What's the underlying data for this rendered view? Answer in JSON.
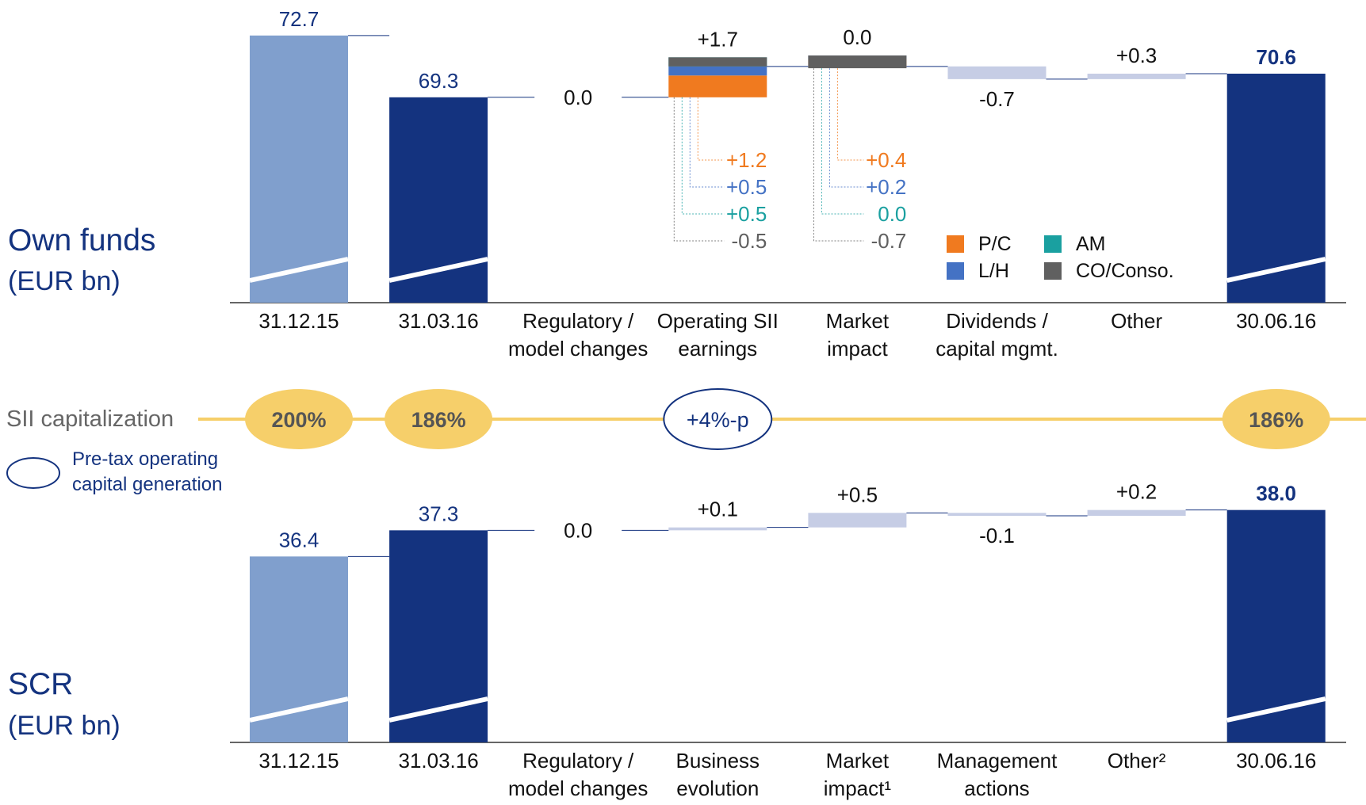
{
  "chart_data": [
    {
      "type": "waterfall",
      "title": "Own funds",
      "subtitle": "(EUR bn)",
      "categories": [
        "31.12.15",
        "31.03.16",
        "Regulatory /\nmodel changes",
        "Operating SII\nearnings",
        "Market\nimpact",
        "Dividends /\ncapital mgmt.",
        "Other",
        "30.06.16"
      ],
      "measure": [
        "total",
        "total",
        "relative",
        "relative",
        "relative",
        "relative",
        "relative",
        "total"
      ],
      "values": [
        72.7,
        69.3,
        0.0,
        1.7,
        0.0,
        -0.7,
        0.3,
        70.6
      ],
      "value_labels": [
        "72.7",
        "69.3",
        "0.0",
        "+1.7",
        "0.0",
        "-0.7",
        "+0.3",
        "70.6"
      ],
      "colors": [
        "#809fcd",
        "#14337f",
        "#c6cde5",
        "#c6cde5",
        "#c6cde5",
        "#c6cde5",
        "#c6cde5",
        "#14337f"
      ],
      "ylim": [
        58,
        74
      ],
      "breakdown": [
        {
          "name": "P/C",
          "color": "#f07a1f",
          "values": [
            null,
            null,
            null,
            1.2,
            0.4,
            null,
            null,
            null
          ],
          "value_labels": [
            null,
            null,
            null,
            "+1.2",
            "+0.4",
            null,
            null,
            null
          ]
        },
        {
          "name": "L/H",
          "color": "#4472c4",
          "values": [
            null,
            null,
            null,
            0.5,
            0.2,
            null,
            null,
            null
          ],
          "value_labels": [
            null,
            null,
            null,
            "+0.5",
            "+0.2",
            null,
            null,
            null
          ]
        },
        {
          "name": "AM",
          "color": "#1aa0a0",
          "values": [
            null,
            null,
            null,
            0.5,
            0.0,
            null,
            null,
            null
          ],
          "value_labels": [
            null,
            null,
            null,
            "+0.5",
            "0.0",
            null,
            null,
            null
          ]
        },
        {
          "name": "CO/Conso.",
          "color": "#606060",
          "values": [
            null,
            null,
            null,
            -0.5,
            -0.7,
            null,
            null,
            null
          ],
          "value_labels": [
            null,
            null,
            null,
            "-0.5",
            "-0.7",
            null,
            null,
            null
          ]
        }
      ]
    },
    {
      "type": "waterfall",
      "title": "SCR",
      "subtitle": "(EUR bn)",
      "categories": [
        "31.12.15",
        "31.03.16",
        "Regulatory /\nmodel changes",
        "Business\nevolution",
        "Market\nimpact¹",
        "Management\nactions",
        "Other²",
        "30.06.16"
      ],
      "measure": [
        "total",
        "total",
        "relative",
        "relative",
        "relative",
        "relative",
        "relative",
        "total"
      ],
      "values": [
        36.4,
        37.3,
        0.0,
        0.1,
        0.5,
        -0.1,
        0.2,
        38.0
      ],
      "value_labels": [
        "36.4",
        "37.3",
        "0.0",
        "+0.1",
        "+0.5",
        "-0.1",
        "+0.2",
        "38.0"
      ],
      "colors": [
        "#809fcd",
        "#14337f",
        "#c6cde5",
        "#c6cde5",
        "#c6cde5",
        "#c6cde5",
        "#c6cde5",
        "#14337f"
      ],
      "ylim": [
        30,
        39
      ]
    }
  ],
  "capitalization": {
    "label": "SII capitalization",
    "color": "#f6cf6a",
    "values": [
      200,
      186,
      null,
      null,
      null,
      null,
      null,
      186
    ],
    "value_labels": [
      "200%",
      "186%",
      null,
      null,
      null,
      null,
      null,
      "186%"
    ],
    "generation": {
      "name": "Pre-tax operating\ncapital generation",
      "values": [
        null,
        null,
        null,
        4,
        null,
        null,
        null,
        null
      ],
      "value_labels": [
        null,
        null,
        null,
        "+4%-p",
        null,
        null,
        null,
        null
      ]
    }
  }
}
